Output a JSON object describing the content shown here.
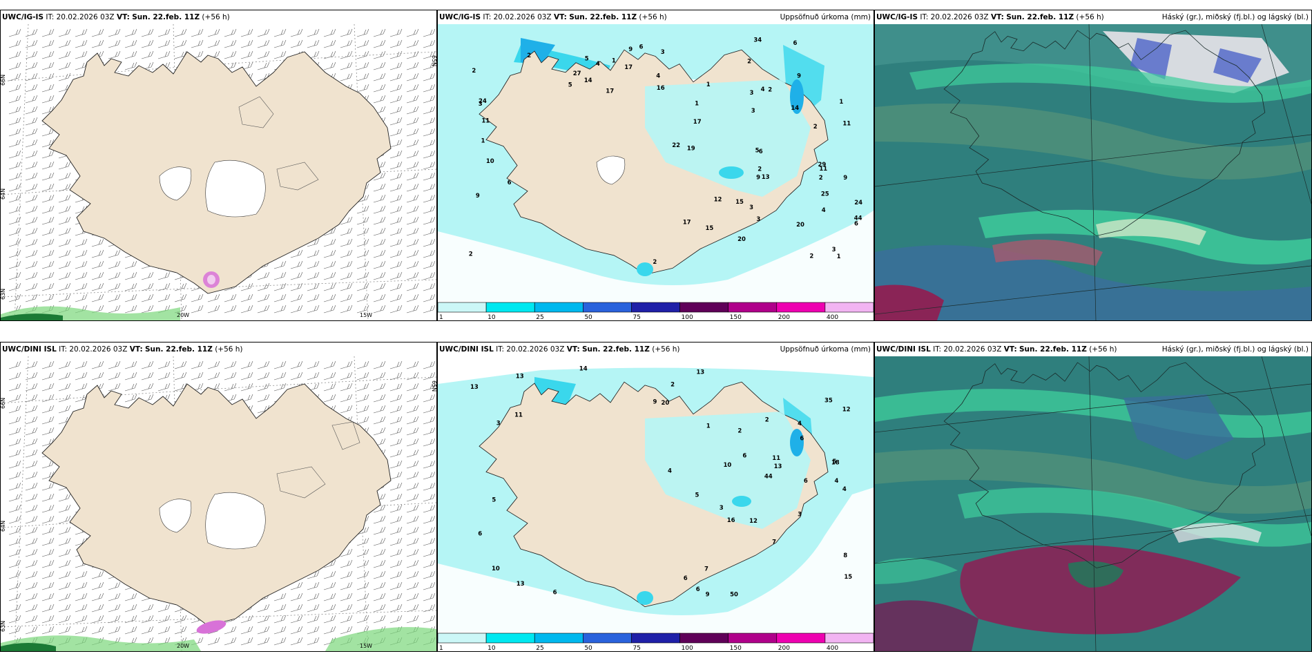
{
  "top": {
    "wind": {
      "model": "UWC/IG-IS",
      "it_label": "IT:",
      "it_value": "20.02.2026 03Z",
      "vt_label": "VT:",
      "vt_value": "Sun. 22.feb. 11Z",
      "lead": "(+56 h)",
      "axis": {
        "lat_66": "66N",
        "lat_64": "64N",
        "lat_63": "63N",
        "lon_20": "20W",
        "lon_15": "15W",
        "right_65": "65N"
      }
    },
    "precip": {
      "model": "UWC/IG-IS",
      "it_label": "IT:",
      "it_value": "20.02.2026 03Z",
      "vt_label": "VT:",
      "vt_value": "Sun. 22.feb. 11Z",
      "lead": "(+56 h)",
      "field": "Uppsöfnuð úrkoma (mm)",
      "values": [
        "2",
        "2",
        "16",
        "15",
        "9",
        "4",
        "4",
        "6",
        "6",
        "5",
        "5",
        "5",
        "17",
        "34",
        "14",
        "3",
        "11",
        "25",
        "13",
        "19",
        "3",
        "2",
        "12",
        "24",
        "17",
        "44",
        "3",
        "17",
        "3",
        "6",
        "10",
        "3",
        "6",
        "4",
        "6",
        "22",
        "24",
        "17",
        "4",
        "3",
        "9",
        "9",
        "11",
        "14",
        "20",
        "20",
        "9",
        "2",
        "2",
        "9",
        "15",
        "29",
        "11",
        "1",
        "1",
        "2",
        "2",
        "3",
        "2",
        "2",
        "1",
        "1",
        "1",
        "1",
        "27",
        "2"
      ]
    },
    "cloud": {
      "model": "UWC/IG-IS",
      "it_label": "IT:",
      "it_value": "20.02.2026 03Z",
      "vt_label": "VT:",
      "vt_value": "Sun. 22.feb. 11Z",
      "lead": "(+56 h)",
      "field": "Háský (gr.), miðský (fj.bl.) og lágský (bl.)"
    }
  },
  "bottom": {
    "wind": {
      "model": "UWC/DINI ISL",
      "it_label": "IT:",
      "it_value": "20.02.2026 03Z",
      "vt_label": "VT:",
      "vt_value": "Sun. 22.feb. 11Z",
      "lead": "(+56 h)",
      "axis": {
        "lat_66": "66N",
        "lat_64": "64N",
        "lat_63": "63N",
        "lon_20": "20W",
        "lon_15": "15W",
        "right_65": "65N"
      }
    },
    "precip": {
      "model": "UWC/DINI ISL",
      "it_label": "IT:",
      "it_value": "20.02.2026 03Z",
      "vt_label": "VT:",
      "vt_value": "Sun. 22.feb. 11Z",
      "lead": "(+56 h)",
      "field": "Uppsöfnuð úrkoma (mm)",
      "values": [
        "3",
        "3",
        "3",
        "6",
        "8",
        "10",
        "10",
        "20",
        "14",
        "13",
        "6",
        "11",
        "16",
        "50",
        "13",
        "5",
        "6",
        "11",
        "13",
        "13",
        "44",
        "4",
        "6",
        "2",
        "13",
        "35",
        "9",
        "5",
        "9",
        "12",
        "12",
        "2",
        "15",
        "1",
        "7",
        "4",
        "4",
        "5",
        "6",
        "6",
        "6",
        "7",
        "4",
        "18",
        "2"
      ]
    },
    "cloud": {
      "model": "UWC/DINI ISL",
      "it_label": "IT:",
      "it_value": "20.02.2026 03Z",
      "vt_label": "VT:",
      "vt_value": "Sun. 22.feb. 11Z",
      "lead": "(+56 h)",
      "field": "Háský (gr.), miðský (fj.bl.) og lágský (bl.)"
    }
  },
  "colorbar": {
    "ticks": [
      "1",
      "10",
      "25",
      "50",
      "75",
      "100",
      "150",
      "200",
      "400"
    ],
    "colors": [
      "#ccf7f7",
      "#00e8f0",
      "#00b8ee",
      "#2a62dc",
      "#2020a8",
      "#600058",
      "#b0008a",
      "#ee00b0",
      "#f2b4f2"
    ]
  },
  "palette": {
    "land": "#f0e3cf",
    "wind_bg": "#ffffff",
    "rain_light": "#b5f5f5",
    "rain_mid": "#3ad7ec",
    "cloud_high": "#2f7f7d",
    "cloud_mid": "#3fcf9c",
    "cloud_low": "#4e64c8",
    "cloud_heavy": "#8a2456"
  }
}
